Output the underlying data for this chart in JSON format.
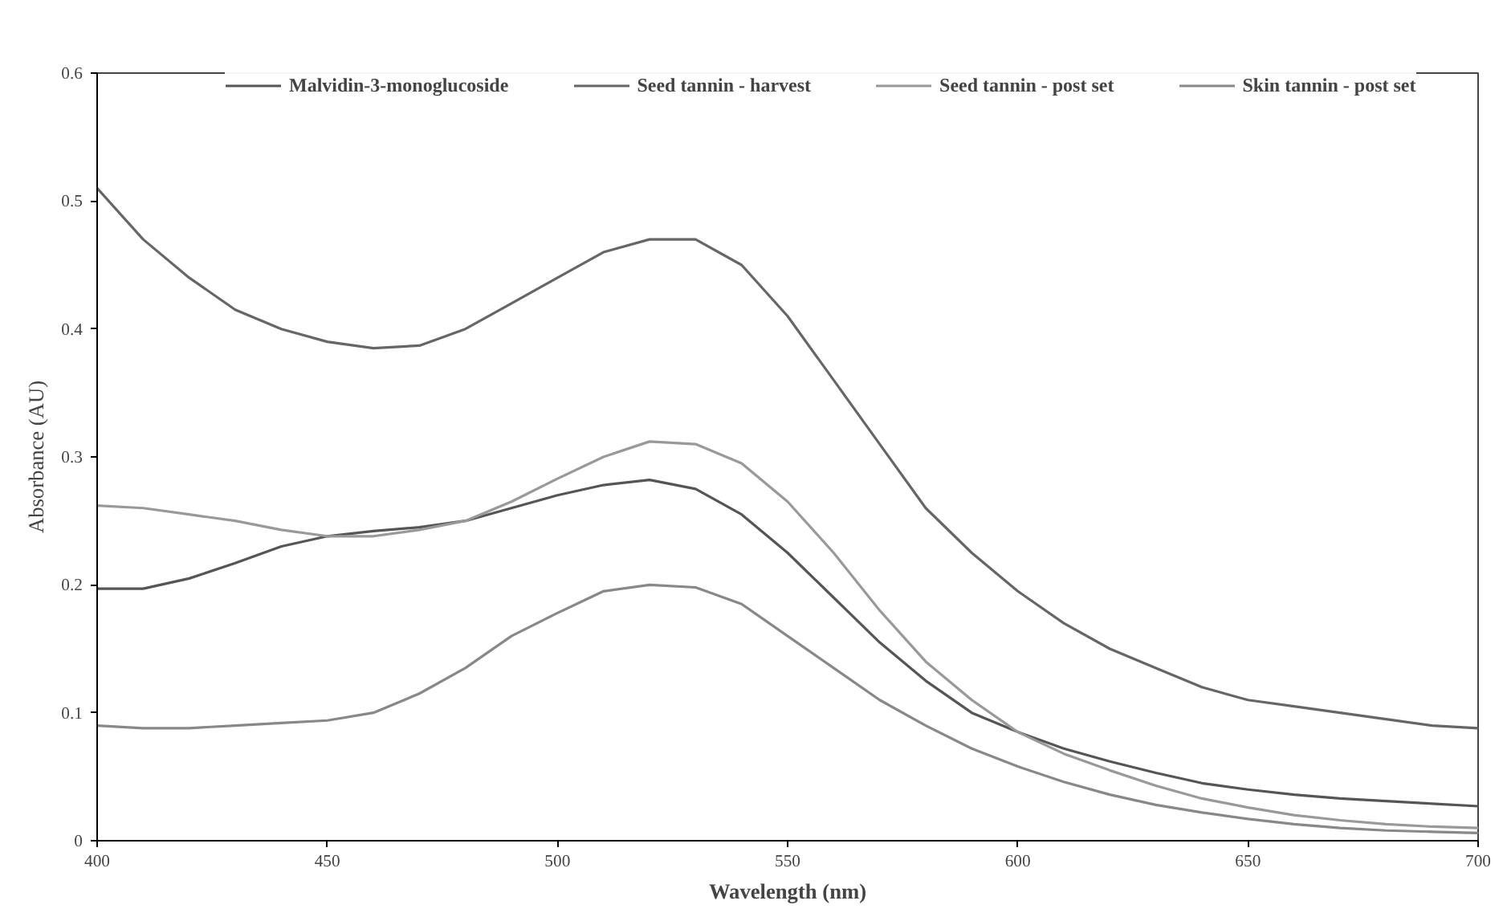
{
  "chart_data": {
    "type": "line",
    "xlabel": "Wavelength (nm)",
    "ylabel": "Absorbance (AU)",
    "x": [
      400,
      410,
      420,
      430,
      440,
      450,
      460,
      470,
      480,
      490,
      500,
      510,
      520,
      530,
      540,
      550,
      560,
      570,
      580,
      590,
      600,
      610,
      620,
      630,
      640,
      650,
      660,
      670,
      680,
      690,
      700
    ],
    "series": [
      {
        "name": "Malvidin-3-monoglucoside",
        "color": "#555555",
        "values": [
          0.197,
          0.197,
          0.205,
          0.217,
          0.23,
          0.238,
          0.242,
          0.245,
          0.25,
          0.26,
          0.27,
          0.278,
          0.282,
          0.275,
          0.255,
          0.225,
          0.19,
          0.155,
          0.125,
          0.1,
          0.085,
          0.072,
          0.062,
          0.053,
          0.045,
          0.04,
          0.036,
          0.033,
          0.031,
          0.029,
          0.027
        ]
      },
      {
        "name": "Seed tannin - harvest",
        "color": "#666666",
        "values": [
          0.51,
          0.47,
          0.44,
          0.415,
          0.4,
          0.39,
          0.385,
          0.387,
          0.4,
          0.42,
          0.44,
          0.46,
          0.47,
          0.47,
          0.45,
          0.41,
          0.36,
          0.31,
          0.26,
          0.225,
          0.195,
          0.17,
          0.15,
          0.135,
          0.12,
          0.11,
          0.105,
          0.1,
          0.095,
          0.09,
          0.088
        ]
      },
      {
        "name": "Seed tannin - post set",
        "color": "#999999",
        "values": [
          0.262,
          0.26,
          0.255,
          0.25,
          0.243,
          0.238,
          0.238,
          0.243,
          0.25,
          0.265,
          0.283,
          0.3,
          0.312,
          0.31,
          0.295,
          0.265,
          0.225,
          0.18,
          0.14,
          0.11,
          0.085,
          0.068,
          0.055,
          0.043,
          0.033,
          0.026,
          0.02,
          0.016,
          0.013,
          0.011,
          0.01
        ]
      },
      {
        "name": "Skin tannin - post set",
        "color": "#888888",
        "values": [
          0.09,
          0.088,
          0.088,
          0.09,
          0.092,
          0.094,
          0.1,
          0.115,
          0.135,
          0.16,
          0.178,
          0.195,
          0.2,
          0.198,
          0.185,
          0.16,
          0.135,
          0.11,
          0.09,
          0.072,
          0.058,
          0.046,
          0.036,
          0.028,
          0.022,
          0.017,
          0.013,
          0.01,
          0.008,
          0.007,
          0.006
        ]
      }
    ],
    "xlim": [
      400,
      700
    ],
    "xticks": [
      400,
      450,
      500,
      550,
      600,
      650,
      700
    ],
    "ylim": [
      0,
      0.6
    ],
    "yticks": [
      0,
      0.1,
      0.2,
      0.3,
      0.4,
      0.5,
      0.6
    ],
    "grid": false,
    "legend": "top",
    "line_style": "solid",
    "marker": "none"
  }
}
